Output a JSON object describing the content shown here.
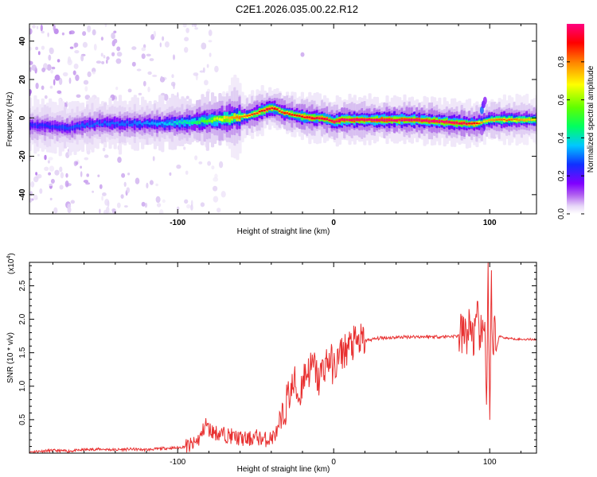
{
  "title": "C2E1.2026.035.00.22.R12",
  "colors": {
    "snr_line": "#e83030",
    "axis": "#000000",
    "colormap": [
      "#ffffff",
      "#dcc8f2",
      "#b070e8",
      "#8000ff",
      "#2030ff",
      "#00c8ff",
      "#00ff80",
      "#60ff00",
      "#ffff00",
      "#ff8000",
      "#ff0000",
      "#ff0080"
    ]
  },
  "chart_data": [
    {
      "type": "heatmap",
      "name": "spectrogram",
      "xlabel": "Height of straight line (km)",
      "ylabel": "Frequency (Hz)",
      "xlim": [
        -195,
        130
      ],
      "ylim": [
        -50,
        49
      ],
      "xticks": [
        -100,
        0,
        100
      ],
      "xtick_labels": [
        "-100",
        "0",
        "100"
      ],
      "yticks": [
        -40,
        -20,
        0,
        20,
        40
      ],
      "ytick_labels": [
        "-40",
        "-20",
        "0",
        "20",
        "40"
      ],
      "ridge": {
        "x": [
          -195,
          -170,
          -150,
          -130,
          -110,
          -90,
          -75,
          -65,
          -55,
          -48,
          -42,
          -38,
          -33,
          -28,
          -22,
          -15,
          -8,
          -3,
          0,
          5,
          15,
          30,
          50,
          70,
          85,
          92,
          96,
          100,
          110,
          120,
          130
        ],
        "y": [
          -4,
          -5,
          -3,
          -3,
          -3,
          -2,
          -1,
          0,
          1,
          3,
          5,
          5,
          3,
          2,
          1,
          0,
          0,
          -1,
          -2,
          -1,
          -1,
          -1,
          -1,
          -2,
          -3,
          -3,
          -2,
          -1,
          -1,
          -1,
          -1
        ],
        "peak_amplitude": [
          0.35,
          0.38,
          0.4,
          0.4,
          0.45,
          0.55,
          0.7,
          0.8,
          0.85,
          0.9,
          0.95,
          0.9,
          0.88,
          0.9,
          0.92,
          0.94,
          0.95,
          0.96,
          0.98,
          1.0,
          1.0,
          1.0,
          1.0,
          1.0,
          0.95,
          0.9,
          0.75,
          0.8,
          0.85,
          0.8,
          0.75
        ]
      }
    },
    {
      "type": "colorbar",
      "name": "amplitude-colorbar",
      "label": "Normalized spectral amplitude",
      "range": [
        0.0,
        1.0
      ],
      "ticks": [
        0.0,
        0.2,
        0.4,
        0.6,
        0.8
      ],
      "tick_labels": [
        "0.0",
        "0.2",
        "0.4",
        "0.6",
        "0.8"
      ]
    },
    {
      "type": "line",
      "name": "snr",
      "xlabel": "Height of straight line (km)",
      "ylabel": "SNR (10 * v/v)",
      "y_multiplier": "(x10",
      "y_multiplier_exp": "4",
      "y_multiplier_close": ")",
      "xlim": [
        -195,
        130
      ],
      "ylim": [
        0,
        2.85
      ],
      "xticks": [
        -100,
        0,
        100
      ],
      "xtick_labels": [
        "-100",
        "0",
        "100"
      ],
      "yticks": [
        0.5,
        1.0,
        1.5,
        2.0,
        2.5
      ],
      "ytick_labels": [
        "0.5",
        "1.0",
        "1.5",
        "2.0",
        "2.5"
      ],
      "series": [
        {
          "name": "SNR",
          "x": [
            -195,
            -180,
            -170,
            -160,
            -150,
            -140,
            -130,
            -120,
            -110,
            -100,
            -90,
            -85,
            -82,
            -80,
            -75,
            -70,
            -65,
            -60,
            -55,
            -50,
            -45,
            -40,
            -35,
            -32,
            -30,
            -27,
            -25,
            -22,
            -20,
            -18,
            -15,
            -12,
            -10,
            -8,
            -5,
            -2,
            0,
            3,
            5,
            8,
            10,
            15,
            20,
            25,
            30,
            40,
            50,
            60,
            70,
            80,
            85,
            88,
            90,
            92,
            94,
            96,
            97,
            98,
            99,
            100,
            101,
            102,
            103,
            104,
            106,
            110,
            120,
            130
          ],
          "y": [
            0.02,
            0.04,
            0.03,
            0.05,
            0.06,
            0.05,
            0.06,
            0.05,
            0.07,
            0.08,
            0.12,
            0.25,
            0.45,
            0.35,
            0.3,
            0.28,
            0.25,
            0.22,
            0.2,
            0.25,
            0.2,
            0.22,
            0.35,
            0.55,
            0.8,
            0.95,
            1.05,
            0.8,
            1.1,
            1.2,
            1.25,
            1.3,
            1.05,
            1.2,
            1.35,
            1.4,
            1.25,
            1.4,
            1.5,
            1.55,
            1.6,
            1.65,
            1.68,
            1.7,
            1.72,
            1.73,
            1.74,
            1.74,
            1.74,
            1.75,
            1.78,
            1.9,
            1.7,
            1.95,
            1.8,
            1.6,
            2.2,
            0.6,
            2.8,
            0.3,
            2.6,
            1.0,
            2.0,
            1.5,
            1.75,
            1.72,
            1.7,
            1.7
          ]
        }
      ]
    }
  ]
}
